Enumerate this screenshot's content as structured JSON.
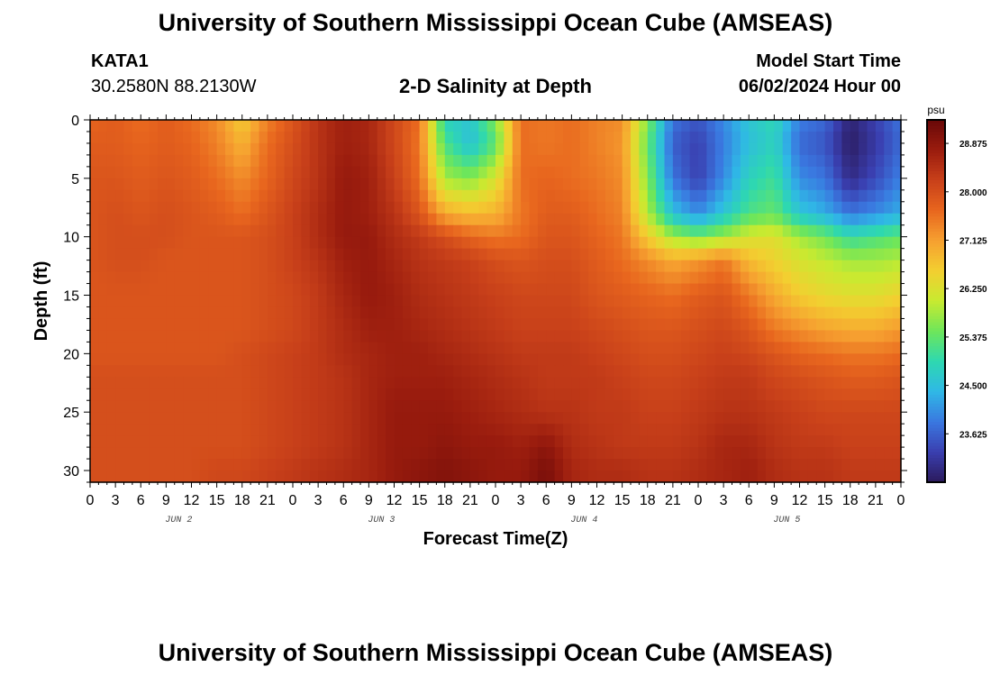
{
  "header": {
    "title": "University of Southern Mississippi Ocean Cube (AMSEAS)",
    "station_id": "KATA1",
    "station_coords": "30.2580N  88.2130W",
    "plot_title": "2-D Salinity at Depth",
    "model_start_label": "Model Start Time",
    "model_start_value": "06/02/2024 Hour 00"
  },
  "footer": {
    "title": "University of Southern Mississippi Ocean Cube (AMSEAS)"
  },
  "chart_data": {
    "type": "heatmap",
    "title": "2-D Salinity at Depth",
    "xlabel": "Forecast Time(Z)",
    "ylabel": "Depth (ft)",
    "x_tick_labels": [
      "0",
      "3",
      "6",
      "9",
      "12",
      "15",
      "18",
      "21",
      "0",
      "3",
      "6",
      "9",
      "12",
      "15",
      "18",
      "21",
      "0",
      "3",
      "6",
      "9",
      "12",
      "15",
      "18",
      "21",
      "0",
      "3",
      "6",
      "9",
      "12",
      "15",
      "18",
      "21",
      "0"
    ],
    "x_day_labels": [
      "JUN 2",
      "JUN 3",
      "JUN 4",
      "JUN 5"
    ],
    "x_range_hours": [
      0,
      96
    ],
    "y_ticks": [
      0,
      5,
      10,
      15,
      20,
      25,
      30
    ],
    "y_range": [
      0,
      31
    ],
    "y_inverted": true,
    "colorbar": {
      "unit": "psu",
      "ticks": [
        "28.875",
        "28.000",
        "27.125",
        "26.250",
        "25.375",
        "24.500",
        "23.625"
      ],
      "range": [
        22.75,
        29.3
      ],
      "colormap": [
        "#2b1a5c",
        "#3a3fb0",
        "#3a78e0",
        "#2fb8e6",
        "#2ed8b0",
        "#6ee65a",
        "#c8ea30",
        "#f3cf30",
        "#f6a030",
        "#e8661e",
        "#c8401a",
        "#9a1c0e",
        "#680808"
      ]
    },
    "x_hours": [
      0,
      3,
      6,
      9,
      12,
      15,
      18,
      21,
      24,
      27,
      30,
      33,
      36,
      39,
      42,
      45,
      48,
      51,
      54,
      57,
      60,
      63,
      66,
      69,
      72,
      75,
      78,
      81,
      84,
      87,
      90,
      93,
      96
    ],
    "depths_ft": [
      0,
      2,
      5,
      8,
      10,
      12,
      15,
      18,
      20,
      22,
      25,
      28,
      30
    ],
    "salinity_psu": [
      [
        27.7,
        27.8,
        27.6,
        27.8,
        27.6,
        27.3,
        26.6,
        27.4,
        27.9,
        28.4,
        28.7,
        28.6,
        28.1,
        27.6,
        24.8,
        24.6,
        25.6,
        27.6,
        27.5,
        27.6,
        27.4,
        27.3,
        25.6,
        23.8,
        23.5,
        24.0,
        24.6,
        24.9,
        23.9,
        23.7,
        22.9,
        23.3,
        23.8
      ],
      [
        27.8,
        27.8,
        27.7,
        27.8,
        27.7,
        27.4,
        26.9,
        27.6,
        28.0,
        28.4,
        28.7,
        28.6,
        28.1,
        27.5,
        25.2,
        24.5,
        25.3,
        27.6,
        27.5,
        27.6,
        27.4,
        27.2,
        25.4,
        23.6,
        23.3,
        23.9,
        24.5,
        24.8,
        23.7,
        23.5,
        22.8,
        23.2,
        23.7
      ],
      [
        27.9,
        27.9,
        27.8,
        27.9,
        27.8,
        27.6,
        27.3,
        27.7,
        28.1,
        28.4,
        28.8,
        28.7,
        28.2,
        27.6,
        25.8,
        25.6,
        26.2,
        27.6,
        27.7,
        27.6,
        27.5,
        27.3,
        25.6,
        23.8,
        23.3,
        24.0,
        24.8,
        25.1,
        24.0,
        23.8,
        23.0,
        23.4,
        23.9
      ],
      [
        27.9,
        28.0,
        27.9,
        28.0,
        27.9,
        27.8,
        27.6,
        27.9,
        28.2,
        28.5,
        28.8,
        28.7,
        28.4,
        27.9,
        27.0,
        26.8,
        26.9,
        27.5,
        27.8,
        27.8,
        27.6,
        27.4,
        25.9,
        24.5,
        24.0,
        24.6,
        25.2,
        25.4,
        24.6,
        24.3,
        23.8,
        24.0,
        24.3
      ],
      [
        27.9,
        28.0,
        28.0,
        28.0,
        27.9,
        27.9,
        27.9,
        28.0,
        28.2,
        28.5,
        28.8,
        28.8,
        28.5,
        28.3,
        28.0,
        27.7,
        27.5,
        27.6,
        27.9,
        27.9,
        27.7,
        27.5,
        26.6,
        25.8,
        25.5,
        25.8,
        26.2,
        26.3,
        25.8,
        25.5,
        25.0,
        25.2,
        25.4
      ],
      [
        27.9,
        28.0,
        28.0,
        27.9,
        27.9,
        27.9,
        27.9,
        28.0,
        28.2,
        28.4,
        28.7,
        28.8,
        28.6,
        28.4,
        28.3,
        28.2,
        28.0,
        27.9,
        28.0,
        28.0,
        27.8,
        27.6,
        27.3,
        27.0,
        27.2,
        27.5,
        26.8,
        26.5,
        26.2,
        26.0,
        25.8,
        25.8,
        25.9
      ],
      [
        27.9,
        27.9,
        27.9,
        27.9,
        27.9,
        27.9,
        27.9,
        28.0,
        28.1,
        28.3,
        28.6,
        28.8,
        28.7,
        28.5,
        28.4,
        28.3,
        28.2,
        28.1,
        28.1,
        28.1,
        27.9,
        27.8,
        27.7,
        27.6,
        27.8,
        27.9,
        27.5,
        27.0,
        26.6,
        26.4,
        26.3,
        26.3,
        26.5
      ],
      [
        27.9,
        27.9,
        27.9,
        27.9,
        27.9,
        27.9,
        27.9,
        28.0,
        28.1,
        28.3,
        28.5,
        28.7,
        28.7,
        28.6,
        28.5,
        28.4,
        28.3,
        28.2,
        28.2,
        28.2,
        28.1,
        28.0,
        27.9,
        27.9,
        28.0,
        28.1,
        27.9,
        27.5,
        27.3,
        27.1,
        27.0,
        27.0,
        27.2
      ],
      [
        27.9,
        27.9,
        27.9,
        27.9,
        27.9,
        27.9,
        28.0,
        28.1,
        28.2,
        28.3,
        28.5,
        28.6,
        28.7,
        28.7,
        28.6,
        28.5,
        28.4,
        28.3,
        28.3,
        28.3,
        28.2,
        28.1,
        28.0,
        28.0,
        28.1,
        28.2,
        28.1,
        27.9,
        27.7,
        27.6,
        27.5,
        27.5,
        27.6
      ],
      [
        28.0,
        28.0,
        28.0,
        28.0,
        28.0,
        28.0,
        28.0,
        28.1,
        28.2,
        28.3,
        28.4,
        28.6,
        28.7,
        28.7,
        28.7,
        28.6,
        28.5,
        28.4,
        28.3,
        28.3,
        28.3,
        28.2,
        28.1,
        28.1,
        28.2,
        28.3,
        28.3,
        28.1,
        28.0,
        27.9,
        27.8,
        27.8,
        27.9
      ],
      [
        28.0,
        28.0,
        28.0,
        28.0,
        28.0,
        28.0,
        28.0,
        28.1,
        28.2,
        28.3,
        28.4,
        28.6,
        28.8,
        28.8,
        28.8,
        28.7,
        28.6,
        28.5,
        28.4,
        28.4,
        28.3,
        28.3,
        28.2,
        28.2,
        28.3,
        28.4,
        28.4,
        28.3,
        28.2,
        28.1,
        28.1,
        28.1,
        28.1
      ],
      [
        28.0,
        28.0,
        28.0,
        28.0,
        28.0,
        28.0,
        28.0,
        28.1,
        28.2,
        28.3,
        28.4,
        28.6,
        28.8,
        28.8,
        28.9,
        28.8,
        28.8,
        28.7,
        28.9,
        28.5,
        28.4,
        28.3,
        28.3,
        28.3,
        28.4,
        28.6,
        28.6,
        28.4,
        28.3,
        28.3,
        28.2,
        28.2,
        28.2
      ],
      [
        28.0,
        28.0,
        28.0,
        28.0,
        28.0,
        28.1,
        28.1,
        28.2,
        28.3,
        28.4,
        28.5,
        28.6,
        28.8,
        28.9,
        29.0,
        28.9,
        28.8,
        28.8,
        29.1,
        28.6,
        28.5,
        28.5,
        28.4,
        28.4,
        28.5,
        28.6,
        28.7,
        28.5,
        28.4,
        28.4,
        28.3,
        28.3,
        28.3
      ]
    ]
  }
}
